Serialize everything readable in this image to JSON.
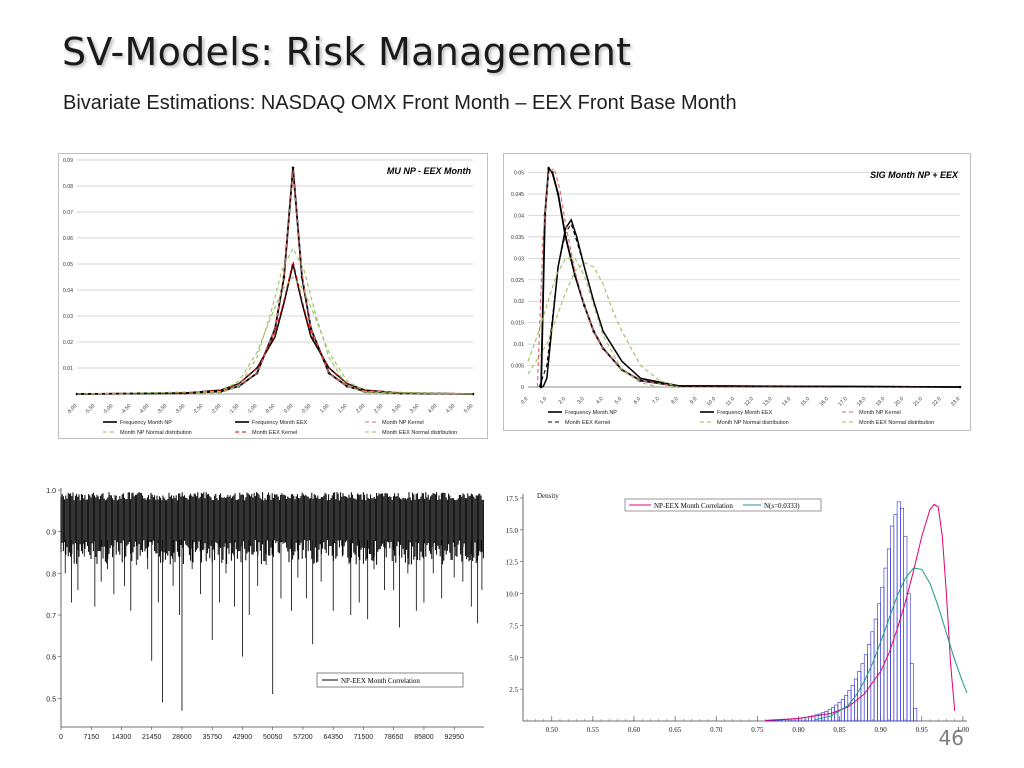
{
  "slide": {
    "title": "SV-Models: Risk Management",
    "subtitle": "Bivariate Estimations: NASDAQ OMX Front Month – EEX Front Base Month",
    "page_number": "46"
  },
  "colors": {
    "frequency": "#000000",
    "np_kernel": "#e06666",
    "eex_kernel": "#cc0000",
    "normal": "#99c159",
    "hist_bar": "#2b2bd1",
    "hist_fit": "#e00070",
    "normal_fit": "#1b9a8c",
    "grid": "#c8c8c8"
  },
  "chart_data": [
    {
      "type": "line",
      "title": "MU NP - EEX Month",
      "x_tick_labels": [
        "-6.00",
        "-5.50",
        "-5.00",
        "-4.50",
        "-4.00",
        "-3.50",
        "-3.00",
        "-2.50",
        "-2.00",
        "-1.50",
        "-1.00",
        "-0.50",
        "0.00",
        "0.50",
        "1.00",
        "1.50",
        "2.00",
        "2.50",
        "3.00",
        "3.50",
        "4.00",
        "4.50",
        "5.00"
      ],
      "y_tick_labels": [
        "0.01",
        "0.02",
        "0.03",
        "0.04",
        "0.05",
        "0.06",
        "0.07",
        "0.08",
        "0.09"
      ],
      "xlim": [
        -6,
        5
      ],
      "ylim": [
        0,
        0.09
      ],
      "grid": true,
      "legend_position": "bottom",
      "series": [
        {
          "name": "Frequency Month NP",
          "color_key": "frequency",
          "style": "solid-marker",
          "x": [
            -6,
            -3,
            -2,
            -1.5,
            -1,
            -0.5,
            -0.25,
            0,
            0.25,
            0.5,
            1,
            1.5,
            2,
            3,
            5
          ],
          "y": [
            0,
            0.0003,
            0.001,
            0.003,
            0.008,
            0.025,
            0.045,
            0.087,
            0.045,
            0.025,
            0.008,
            0.003,
            0.001,
            0.0003,
            0
          ]
        },
        {
          "name": "Frequency Month EEX",
          "color_key": "frequency",
          "style": "solid",
          "x": [
            -6,
            -3,
            -2,
            -1.5,
            -1,
            -0.5,
            -0.25,
            0,
            0.25,
            0.5,
            1,
            1.5,
            2,
            3,
            5
          ],
          "y": [
            0,
            0.0004,
            0.0015,
            0.004,
            0.01,
            0.022,
            0.035,
            0.05,
            0.035,
            0.022,
            0.01,
            0.004,
            0.0015,
            0.0004,
            0
          ]
        },
        {
          "name": "Month NP Kernel",
          "color_key": "np_kernel",
          "style": "dashed",
          "x": [
            -6,
            -3,
            -2,
            -1.5,
            -1,
            -0.5,
            -0.25,
            0,
            0.25,
            0.5,
            1,
            1.5,
            2,
            3,
            5
          ],
          "y": [
            0,
            0.0003,
            0.001,
            0.003,
            0.008,
            0.025,
            0.046,
            0.086,
            0.046,
            0.025,
            0.008,
            0.003,
            0.001,
            0.0003,
            0
          ]
        },
        {
          "name": "Month NP Normal distribution",
          "color_key": "normal",
          "style": "dashed",
          "x": [
            -6,
            -2,
            -1.5,
            -1,
            -0.6,
            -0.3,
            0,
            0.3,
            0.6,
            1,
            1.5,
            2,
            5
          ],
          "y": [
            0,
            0.0005,
            0.003,
            0.014,
            0.032,
            0.048,
            0.056,
            0.048,
            0.032,
            0.014,
            0.003,
            0.0005,
            0
          ]
        },
        {
          "name": "Month EEX Kernel",
          "color_key": "eex_kernel",
          "style": "dashed",
          "x": [
            -6,
            -3,
            -2,
            -1.5,
            -1,
            -0.5,
            -0.25,
            0,
            0.25,
            0.5,
            1,
            1.5,
            2,
            3,
            5
          ],
          "y": [
            0,
            0.0004,
            0.0015,
            0.004,
            0.01,
            0.023,
            0.036,
            0.051,
            0.036,
            0.023,
            0.01,
            0.004,
            0.0015,
            0.0004,
            0
          ]
        },
        {
          "name": "Month EEX Normal distribution",
          "color_key": "normal",
          "style": "dashed",
          "x": [
            -6,
            -2,
            -1.5,
            -1,
            -0.6,
            -0.3,
            0,
            0.3,
            0.6,
            1,
            1.5,
            2,
            5
          ],
          "y": [
            0,
            0.001,
            0.005,
            0.016,
            0.03,
            0.04,
            0.045,
            0.04,
            0.03,
            0.016,
            0.005,
            0.001,
            0
          ]
        }
      ]
    },
    {
      "type": "line",
      "title": "SIG Month NP + EEX",
      "x_tick_labels": [
        "0.0",
        "1.0",
        "2.0",
        "3.0",
        "4.0",
        "5.0",
        "6.0",
        "7.0",
        "8.0",
        "9.0",
        "10.0",
        "11.0",
        "12.0",
        "13.0",
        "14.0",
        "15.0",
        "16.0",
        "17.0",
        "18.0",
        "19.0",
        "20.0",
        "21.0",
        "22.0",
        "23.0"
      ],
      "y_tick_labels": [
        "0",
        "0.005",
        "0.01",
        "0.015",
        "0.02",
        "0.025",
        "0.03",
        "0.035",
        "0.04",
        "0.045",
        "0.05"
      ],
      "xlim": [
        0,
        23
      ],
      "ylim": [
        0,
        0.052
      ],
      "grid": true,
      "legend_position": "bottom",
      "series": [
        {
          "name": "Frequency Month NP",
          "color_key": "frequency",
          "style": "solid-marker",
          "x": [
            0.7,
            0.9,
            1.1,
            1.3,
            1.6,
            2,
            2.5,
            3,
            3.5,
            4,
            5,
            6,
            8,
            23
          ],
          "y": [
            0,
            0.04,
            0.051,
            0.05,
            0.045,
            0.035,
            0.026,
            0.019,
            0.013,
            0.009,
            0.004,
            0.0015,
            0.0002,
            0
          ]
        },
        {
          "name": "Frequency Month EEX",
          "color_key": "frequency",
          "style": "solid",
          "x": [
            0.8,
            1.0,
            1.3,
            1.6,
            2.0,
            2.3,
            2.6,
            3,
            3.5,
            4,
            5,
            6,
            8,
            23
          ],
          "y": [
            0,
            0.002,
            0.015,
            0.028,
            0.037,
            0.039,
            0.035,
            0.028,
            0.02,
            0.013,
            0.006,
            0.002,
            0.0003,
            0
          ]
        },
        {
          "name": "Month NP Kernel",
          "color_key": "np_kernel",
          "style": "dashed",
          "x": [
            0.5,
            0.8,
            1.1,
            1.4,
            1.7,
            2,
            2.5,
            3,
            3.5,
            4,
            5,
            6,
            8,
            23
          ],
          "y": [
            0,
            0.035,
            0.05,
            0.051,
            0.046,
            0.038,
            0.027,
            0.019,
            0.013,
            0.009,
            0.004,
            0.0015,
            0.0002,
            0
          ]
        },
        {
          "name": "Month EEX Kernel",
          "color_key": "frequency",
          "style": "dashed",
          "x": [
            0.6,
            1,
            1.3,
            1.6,
            2,
            2.3,
            2.6,
            3,
            3.5,
            4,
            5,
            6,
            8,
            23
          ],
          "y": [
            0,
            0.005,
            0.016,
            0.028,
            0.036,
            0.038,
            0.034,
            0.028,
            0.02,
            0.013,
            0.006,
            0.002,
            0.0003,
            0
          ]
        },
        {
          "name": "Month NP Normal distribution",
          "color_key": "normal",
          "style": "dashed",
          "x": [
            0,
            0.5,
            1,
            1.5,
            2,
            2.5,
            3,
            3.5,
            4,
            5,
            6,
            7
          ],
          "y": [
            0.006,
            0.012,
            0.019,
            0.026,
            0.03,
            0.03,
            0.026,
            0.019,
            0.012,
            0.004,
            0.001,
            0
          ]
        },
        {
          "name": "Month EEX Normal distribution",
          "color_key": "normal",
          "style": "dashed",
          "x": [
            0,
            1,
            2,
            2.5,
            3,
            3.5,
            4,
            4.5,
            5,
            6,
            7,
            8
          ],
          "y": [
            0.003,
            0.01,
            0.022,
            0.027,
            0.029,
            0.028,
            0.024,
            0.018,
            0.013,
            0.005,
            0.0015,
            0
          ]
        }
      ]
    },
    {
      "type": "line",
      "title": "",
      "x_tick_labels": [
        "0",
        "7150",
        "14300",
        "21450",
        "28600",
        "35750",
        "42900",
        "50050",
        "57200",
        "64350",
        "71500",
        "78650",
        "85800",
        "92950"
      ],
      "y_tick_labels": [
        "0.5",
        "0.6",
        "0.7",
        "0.8",
        "0.9",
        "1.0"
      ],
      "xlim": [
        0,
        100000
      ],
      "ylim": [
        0.46,
        1.0
      ],
      "grid": false,
      "legend_position": "bottom-right",
      "series": [
        {
          "name": "NP-EEX Month Correlation",
          "color_key": "frequency",
          "style": "solid",
          "band_low": 0.88,
          "band_high": 0.995,
          "spikes": [
            [
              1000,
              0.8
            ],
            [
              2500,
              0.73
            ],
            [
              4000,
              0.76
            ],
            [
              5500,
              0.84
            ],
            [
              8000,
              0.72
            ],
            [
              9500,
              0.78
            ],
            [
              11000,
              0.81
            ],
            [
              12500,
              0.75
            ],
            [
              15000,
              0.77
            ],
            [
              16500,
              0.71
            ],
            [
              17800,
              0.82
            ],
            [
              20500,
              0.81
            ],
            [
              21450,
              0.59
            ],
            [
              23000,
              0.73
            ],
            [
              24000,
              0.49
            ],
            [
              26500,
              0.77
            ],
            [
              28000,
              0.7
            ],
            [
              28600,
              0.47
            ],
            [
              31000,
              0.81
            ],
            [
              33000,
              0.75
            ],
            [
              35750,
              0.64
            ],
            [
              37500,
              0.73
            ],
            [
              39000,
              0.8
            ],
            [
              41000,
              0.72
            ],
            [
              42900,
              0.6
            ],
            [
              44500,
              0.7
            ],
            [
              46500,
              0.77
            ],
            [
              48500,
              0.82
            ],
            [
              50050,
              0.51
            ],
            [
              52000,
              0.74
            ],
            [
              54500,
              0.71
            ],
            [
              56000,
              0.79
            ],
            [
              58000,
              0.74
            ],
            [
              59500,
              0.63
            ],
            [
              61500,
              0.78
            ],
            [
              64350,
              0.71
            ],
            [
              66500,
              0.84
            ],
            [
              68500,
              0.7
            ],
            [
              70500,
              0.73
            ],
            [
              72500,
              0.69
            ],
            [
              74000,
              0.81
            ],
            [
              76500,
              0.76
            ],
            [
              78650,
              0.76
            ],
            [
              80000,
              0.67
            ],
            [
              82000,
              0.8
            ],
            [
              84000,
              0.71
            ],
            [
              85800,
              0.73
            ],
            [
              88000,
              0.8
            ],
            [
              90000,
              0.74
            ],
            [
              92950,
              0.79
            ],
            [
              95000,
              0.78
            ],
            [
              97000,
              0.72
            ],
            [
              98500,
              0.68
            ],
            [
              99500,
              0.76
            ]
          ]
        }
      ]
    },
    {
      "type": "bar",
      "title": "",
      "ylabel": "Density",
      "x_tick_labels": [
        "0.50",
        "0.55",
        "0.60",
        "0.65",
        "0.70",
        "0.75",
        "0.80",
        "0.85",
        "0.90",
        "0.95",
        "1.00"
      ],
      "y_tick_labels": [
        "2.5",
        "5.0",
        "7.5",
        "10.0",
        "12.5",
        "15.0",
        "17.5"
      ],
      "xlim": [
        0.465,
        1.005
      ],
      "ylim": [
        0,
        17.5
      ],
      "grid": false,
      "legend_position": "top",
      "histogram": {
        "bin_width": 0.004,
        "start": 0.76,
        "values": [
          0.05,
          0.05,
          0.06,
          0.07,
          0.08,
          0.1,
          0.12,
          0.14,
          0.16,
          0.19,
          0.22,
          0.26,
          0.3,
          0.35,
          0.41,
          0.48,
          0.55,
          0.65,
          0.75,
          0.9,
          1.05,
          1.25,
          1.45,
          1.7,
          2.0,
          2.4,
          2.8,
          3.3,
          3.9,
          4.5,
          5.2,
          6.0,
          7.0,
          8.0,
          9.2,
          10.5,
          12.0,
          13.5,
          15.3,
          16.2,
          17.2,
          16.7,
          14.5,
          10.0,
          4.5,
          1.0
        ]
      },
      "series": [
        {
          "name": "NP-EEX Month Correlation",
          "color_key": "hist_fit",
          "style": "solid",
          "x": [
            0.76,
            0.8,
            0.84,
            0.86,
            0.88,
            0.9,
            0.91,
            0.92,
            0.93,
            0.94,
            0.95,
            0.96,
            0.965,
            0.97,
            0.975,
            0.98,
            0.985,
            0.99
          ],
          "y": [
            0.05,
            0.2,
            0.6,
            1.1,
            2.1,
            3.9,
            5.3,
            7.2,
            9.3,
            11.8,
            14.5,
            16.6,
            17.0,
            16.8,
            14.5,
            10.0,
            4.5,
            0.8
          ]
        },
        {
          "name": "N(s=0.0333)",
          "color_key": "normal_fit",
          "style": "solid",
          "x": [
            0.82,
            0.84,
            0.86,
            0.87,
            0.88,
            0.89,
            0.9,
            0.91,
            0.92,
            0.93,
            0.94,
            0.95,
            0.96,
            0.97,
            0.98,
            0.99,
            1.0,
            1.005
          ],
          "y": [
            0.1,
            0.4,
            1.2,
            2.0,
            3.1,
            4.5,
            6.2,
            8.0,
            9.8,
            11.2,
            12.0,
            11.9,
            10.8,
            9.0,
            6.9,
            4.8,
            3.0,
            2.2
          ]
        }
      ]
    }
  ]
}
